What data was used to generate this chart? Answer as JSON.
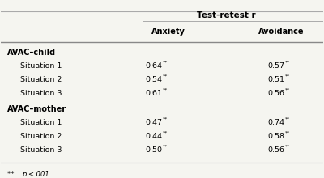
{
  "title": "Test-retest r",
  "col_headers": [
    "Anxiety",
    "Avoidance"
  ],
  "sections": [
    {
      "header": "AVAC–child",
      "rows": [
        {
          "label": "Situation 1",
          "anxiety": "0.64**",
          "avoidance": "0.57**"
        },
        {
          "label": "Situation 2",
          "anxiety": "0.54**",
          "avoidance": "0.51**"
        },
        {
          "label": "Situation 3",
          "anxiety": "0.61**",
          "avoidance": "0.56**"
        }
      ]
    },
    {
      "header": "AVAC–mother",
      "rows": [
        {
          "label": "Situation 1",
          "anxiety": "0.47**",
          "avoidance": "0.74**"
        },
        {
          "label": "Situation 2",
          "anxiety": "0.44**",
          "avoidance": "0.58**"
        },
        {
          "label": "Situation 3",
          "anxiety": "0.50**",
          "avoidance": "0.56**"
        }
      ]
    }
  ],
  "footnote": "** p <.001.",
  "bg_color": "#f5f5f0",
  "line_color": "#aaaaaa",
  "header_line_color": "#888888"
}
